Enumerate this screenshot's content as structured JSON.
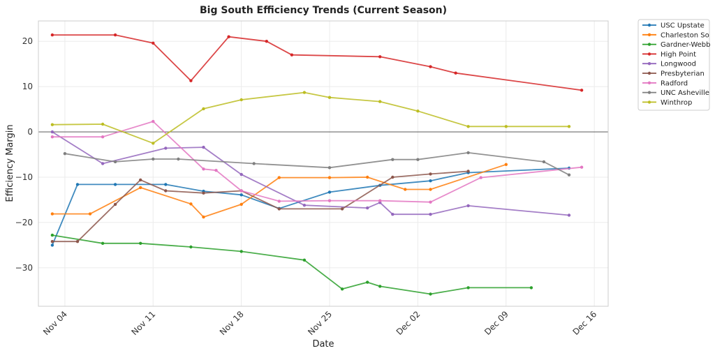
{
  "chart_data": {
    "type": "line",
    "title": "Big South Efficiency Trends (Current Season)",
    "xlabel": "Date",
    "ylabel": "Efficiency Margin",
    "x_ticks": [
      {
        "label": "Nov 04",
        "day": 4
      },
      {
        "label": "Nov 11",
        "day": 11
      },
      {
        "label": "Nov 18",
        "day": 18
      },
      {
        "label": "Nov 25",
        "day": 25
      },
      {
        "label": "Dec 02",
        "day": 32
      },
      {
        "label": "Dec 09",
        "day": 39
      },
      {
        "label": "Dec 16",
        "day": 46
      }
    ],
    "y_ticks": [
      -30,
      -20,
      -10,
      0,
      10,
      20
    ],
    "xlim": [
      1.9,
      47.1
    ],
    "ylim": [
      -38.5,
      24.5
    ],
    "x_unit": "day offset from Oct 31",
    "zero_line": true,
    "grid": true,
    "legend_position": "outside-top-right",
    "series": [
      {
        "name": "USC Upstate",
        "color": "#1f77b4",
        "points": [
          [
            3,
            -25.0
          ],
          [
            5,
            -11.6
          ],
          [
            8,
            -11.6
          ],
          [
            12,
            -11.6
          ],
          [
            15,
            -13.1
          ],
          [
            18,
            -13.9
          ],
          [
            21,
            -16.9
          ],
          [
            25,
            -13.3
          ],
          [
            29,
            -11.8
          ],
          [
            33,
            -10.8
          ],
          [
            36,
            -9.0
          ],
          [
            44,
            -8.0
          ]
        ]
      },
      {
        "name": "Charleston So",
        "color": "#ff7f0e",
        "points": [
          [
            3,
            -18.1
          ],
          [
            6,
            -18.1
          ],
          [
            10,
            -12.3
          ],
          [
            14,
            -15.9
          ],
          [
            15,
            -18.8
          ],
          [
            18,
            -16.0
          ],
          [
            21,
            -10.1
          ],
          [
            25,
            -10.1
          ],
          [
            28,
            -10.0
          ],
          [
            31,
            -12.7
          ],
          [
            33,
            -12.7
          ],
          [
            39,
            -7.2
          ]
        ]
      },
      {
        "name": "Gardner-Webb",
        "color": "#2ca02c",
        "points": [
          [
            3,
            -22.8
          ],
          [
            7,
            -24.6
          ],
          [
            10,
            -24.6
          ],
          [
            14,
            -25.4
          ],
          [
            18,
            -26.4
          ],
          [
            23,
            -28.3
          ],
          [
            26,
            -34.7
          ],
          [
            28,
            -33.2
          ],
          [
            29,
            -34.1
          ],
          [
            33,
            -35.8
          ],
          [
            36,
            -34.4
          ],
          [
            41,
            -34.4
          ]
        ]
      },
      {
        "name": "High Point",
        "color": "#d62728",
        "points": [
          [
            3,
            21.4
          ],
          [
            8,
            21.4
          ],
          [
            11,
            19.6
          ],
          [
            14,
            11.3
          ],
          [
            17,
            21.0
          ],
          [
            20,
            20.0
          ],
          [
            22,
            17.0
          ],
          [
            29,
            16.6
          ],
          [
            33,
            14.4
          ],
          [
            35,
            13.0
          ],
          [
            45,
            9.2
          ]
        ]
      },
      {
        "name": "Longwood",
        "color": "#9467bd",
        "points": [
          [
            3,
            0.0
          ],
          [
            7,
            -7.0
          ],
          [
            12,
            -3.6
          ],
          [
            15,
            -3.4
          ],
          [
            18,
            -9.4
          ],
          [
            23,
            -16.2
          ],
          [
            28,
            -16.8
          ],
          [
            29,
            -15.6
          ],
          [
            30,
            -18.2
          ],
          [
            33,
            -18.2
          ],
          [
            36,
            -16.3
          ],
          [
            44,
            -18.4
          ]
        ]
      },
      {
        "name": "Presbyterian",
        "color": "#8c564b",
        "points": [
          [
            3,
            -24.2
          ],
          [
            5,
            -24.2
          ],
          [
            8,
            -16.0
          ],
          [
            10,
            -10.6
          ],
          [
            12,
            -13.0
          ],
          [
            15,
            -13.5
          ],
          [
            18,
            -13.0
          ],
          [
            21,
            -17.0
          ],
          [
            26,
            -17.0
          ],
          [
            30,
            -10.0
          ],
          [
            33,
            -9.3
          ],
          [
            36,
            -8.7
          ]
        ]
      },
      {
        "name": "Radford",
        "color": "#e377c2",
        "points": [
          [
            3,
            -1.1
          ],
          [
            7,
            -1.1
          ],
          [
            11,
            2.3
          ],
          [
            15,
            -8.2
          ],
          [
            16,
            -8.5
          ],
          [
            18,
            -13.0
          ],
          [
            21,
            -15.3
          ],
          [
            25,
            -15.2
          ],
          [
            29,
            -15.2
          ],
          [
            33,
            -15.5
          ],
          [
            37,
            -10.1
          ],
          [
            45,
            -7.8
          ]
        ]
      },
      {
        "name": "UNC Asheville",
        "color": "#7f7f7f",
        "points": [
          [
            4,
            -4.8
          ],
          [
            8,
            -6.6
          ],
          [
            11,
            -6.0
          ],
          [
            13,
            -6.0
          ],
          [
            19,
            -7.0
          ],
          [
            25,
            -7.9
          ],
          [
            30,
            -6.1
          ],
          [
            32,
            -6.1
          ],
          [
            36,
            -4.6
          ],
          [
            42,
            -6.6
          ],
          [
            44,
            -9.5
          ]
        ]
      },
      {
        "name": "Winthrop",
        "color": "#bcbd22",
        "points": [
          [
            3,
            1.6
          ],
          [
            7,
            1.7
          ],
          [
            11,
            -2.5
          ],
          [
            15,
            5.1
          ],
          [
            18,
            7.1
          ],
          [
            23,
            8.7
          ],
          [
            25,
            7.6
          ],
          [
            29,
            6.7
          ],
          [
            32,
            4.6
          ],
          [
            36,
            1.2
          ],
          [
            39,
            1.2
          ],
          [
            44,
            1.2
          ]
        ]
      }
    ]
  }
}
